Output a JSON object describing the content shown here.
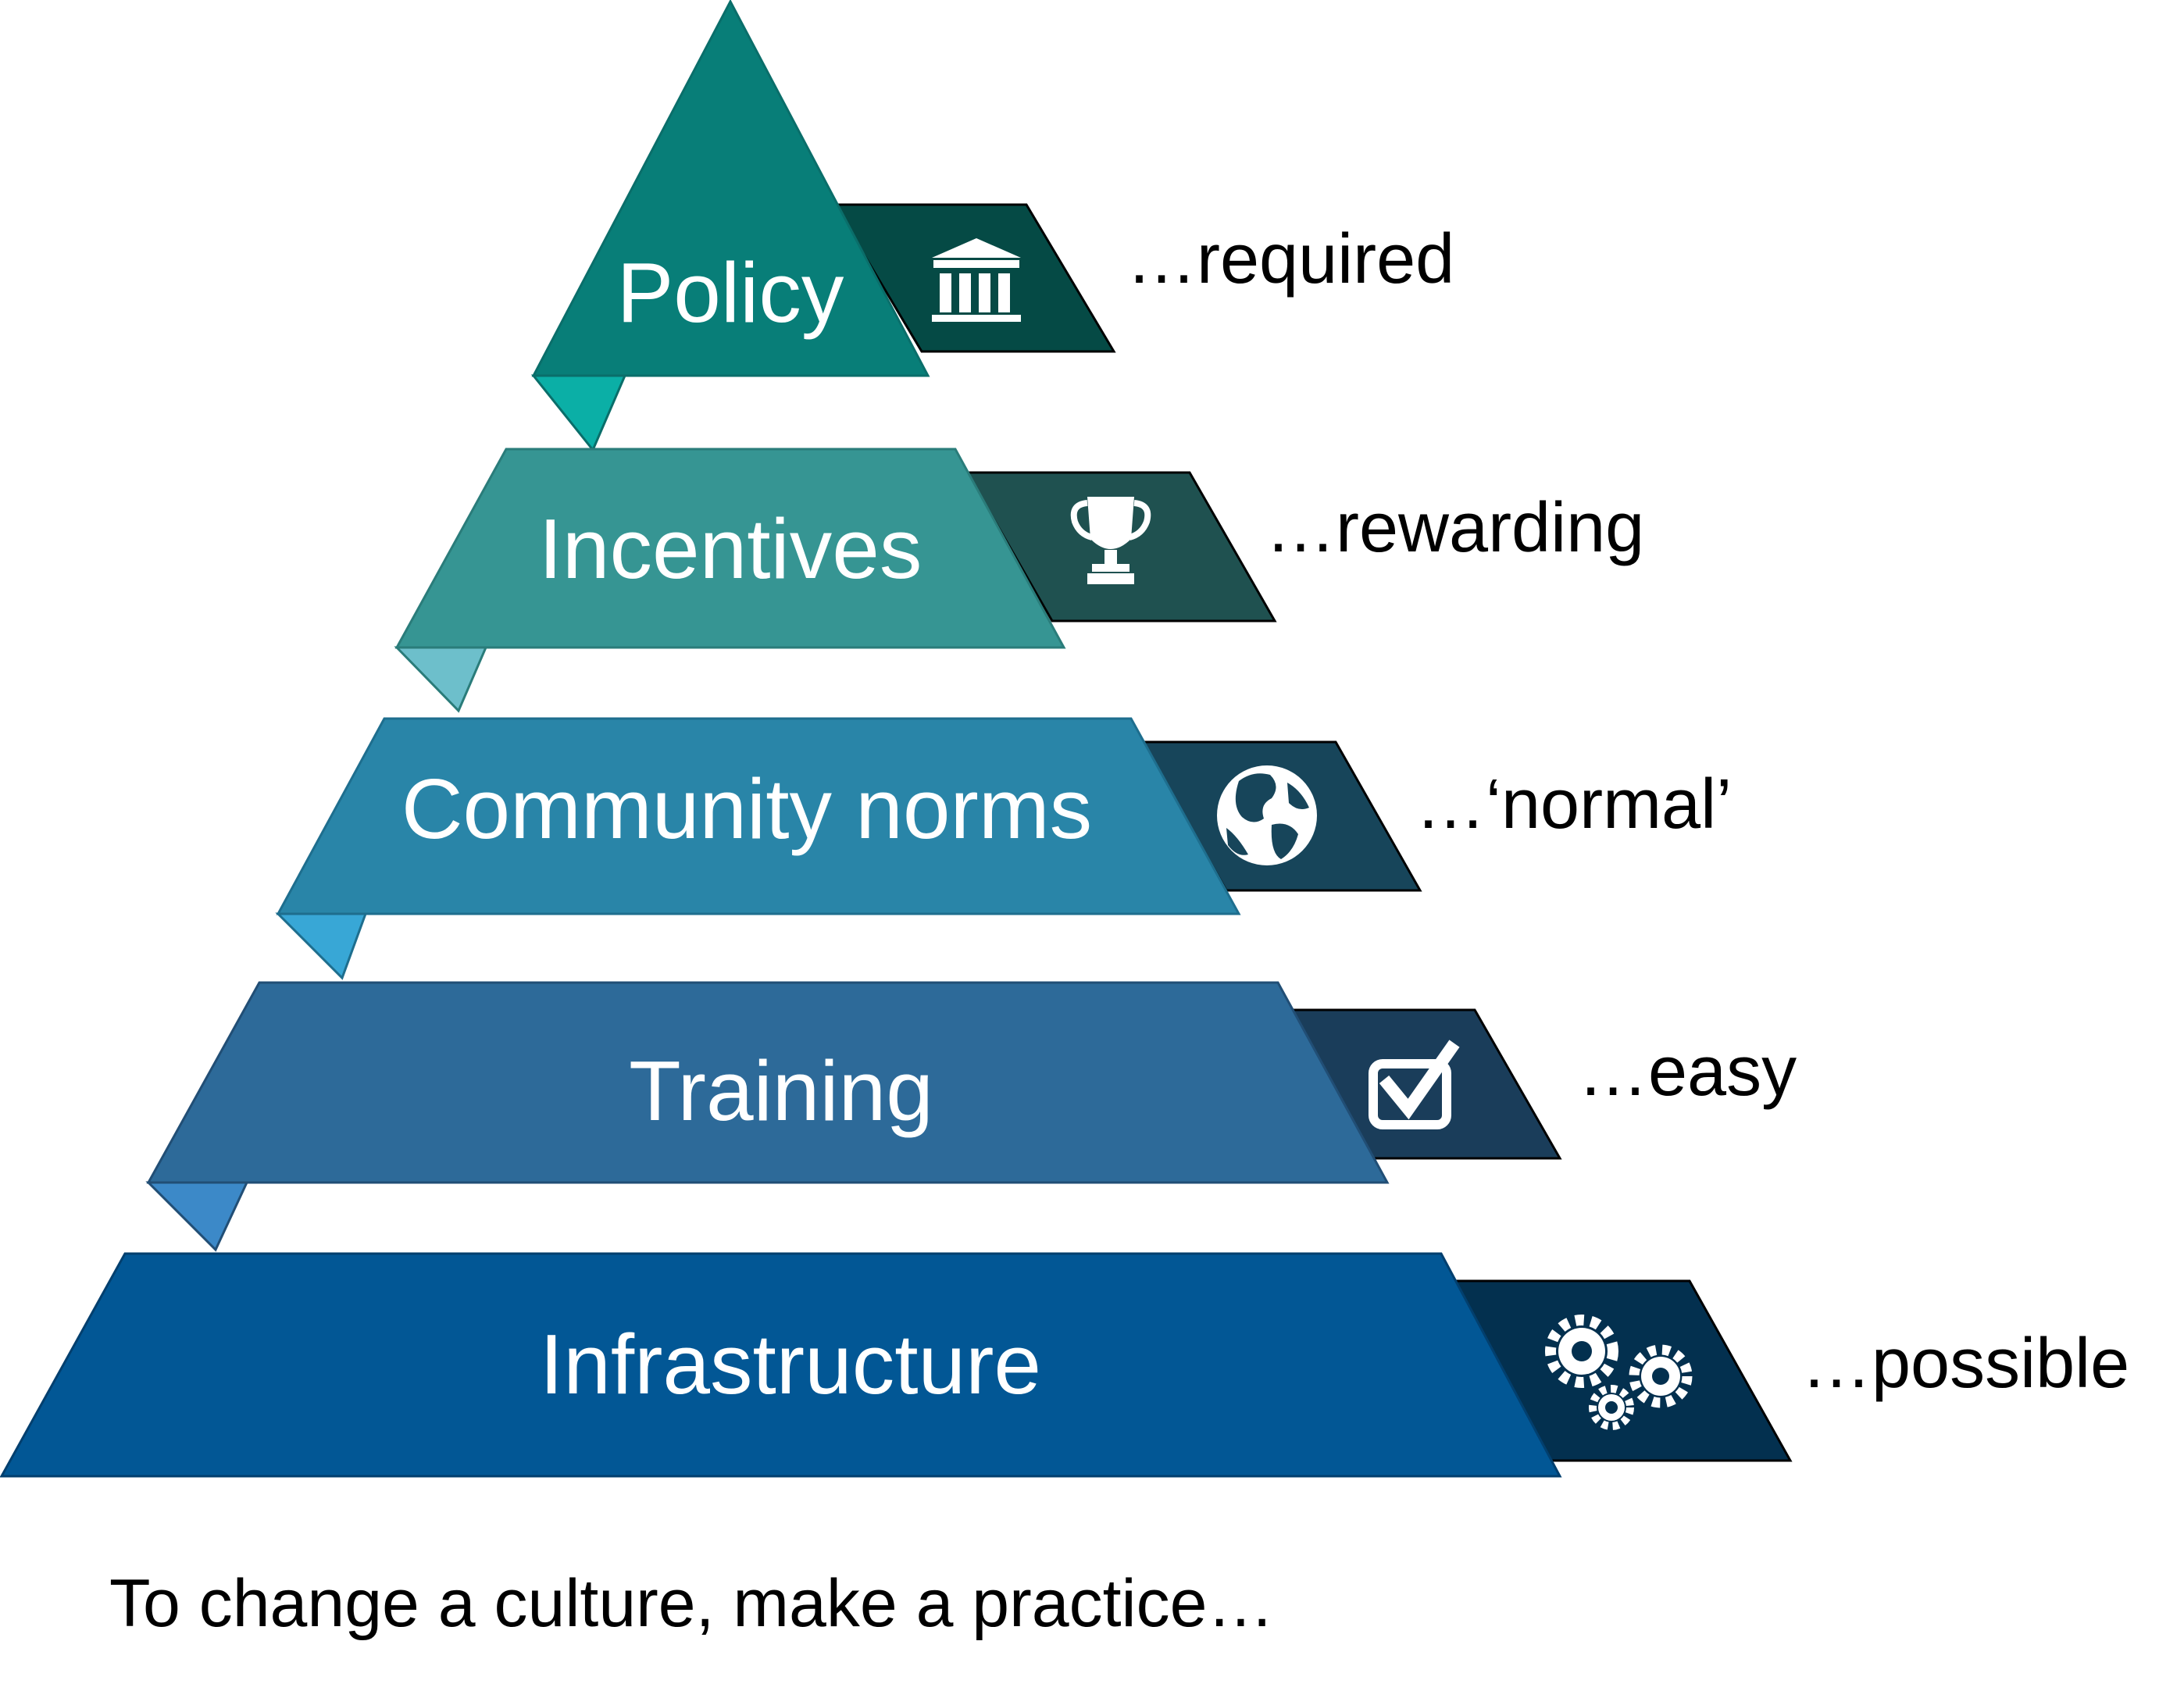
{
  "diagram": {
    "caption": "To change a culture, make a practice…",
    "tiers": [
      {
        "label": "Policy",
        "outcome": "…required",
        "icon": "bank-icon",
        "color": "#087E78",
        "tab_color": "#054A45",
        "fold_color": "#0BAFA6"
      },
      {
        "label": "Incentives",
        "outcome": "…rewarding",
        "icon": "trophy-icon",
        "color": "#369593",
        "tab_color": "#1F5150",
        "fold_color": "#6DBFCB"
      },
      {
        "label": "Community norms",
        "outcome": "…‘normal’",
        "icon": "globe-icon",
        "color": "#2985A8",
        "tab_color": "#17455A",
        "fold_color": "#38A7D6"
      },
      {
        "label": "Training",
        "outcome": "…easy",
        "icon": "checkbox-icon",
        "color": "#2D6A99",
        "tab_color": "#1A3D5A",
        "fold_color": "#3C89C8"
      },
      {
        "label": "Infrastructure",
        "outcome": "…possible",
        "icon": "gears-icon",
        "color": "#025795",
        "tab_color": "#03304F",
        "fold_color": "#0374C2"
      }
    ]
  }
}
